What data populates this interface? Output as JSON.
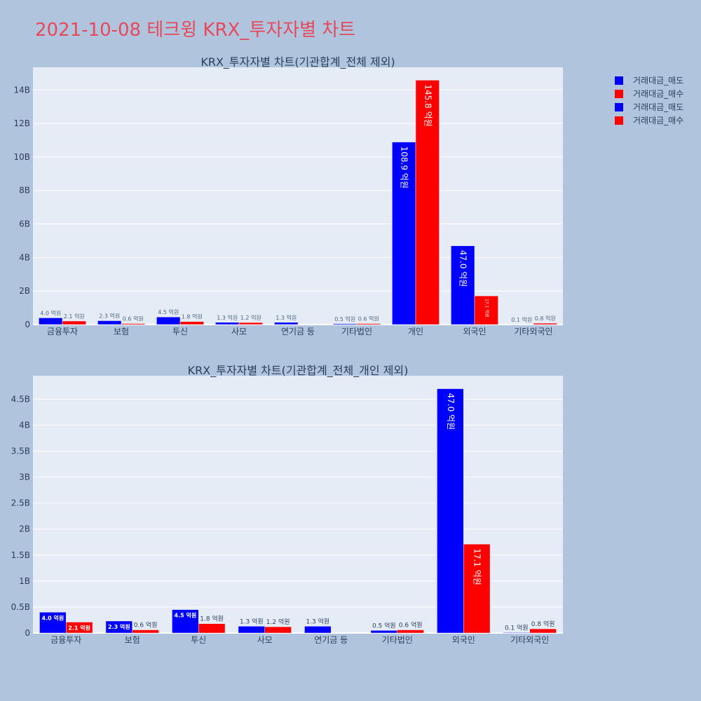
{
  "title": "2021-10-08 테크윙 KRX_투자자별 차트",
  "legend": [
    {
      "label": "거래대금_매도",
      "color": "#0000ff"
    },
    {
      "label": "거래대금_매수",
      "color": "#ff0000"
    },
    {
      "label": "거래대금_매도",
      "color": "#0000ff"
    },
    {
      "label": "거래대금_매수",
      "color": "#ff0000"
    }
  ],
  "chart_data": [
    {
      "type": "bar",
      "title": "KRX_투자자별 차트(기관합계_전체 제외)",
      "categories": [
        "금융투자",
        "보험",
        "투신",
        "사모",
        "연기금 등",
        "기타법인",
        "개인",
        "외국인",
        "기타외국인"
      ],
      "series": [
        {
          "name": "거래대금_매도",
          "color": "#0000ff",
          "values": [
            400000000,
            230000000,
            450000000,
            130000000,
            130000000,
            50000000,
            10890000000,
            4700000000,
            10000000
          ],
          "labels": [
            "4.0 억원",
            "2.3 억원",
            "4.5 억원",
            "1.3 억원",
            "1.3 억원",
            "0.5 억원",
            "108.9 억원",
            "47.0 억원",
            "0.1 억원"
          ]
        },
        {
          "name": "거래대금_매수",
          "color": "#ff0000",
          "values": [
            210000000,
            60000000,
            180000000,
            120000000,
            0,
            60000000,
            14580000000,
            1710000000,
            80000000
          ],
          "labels": [
            "2.1 억원",
            "0.6 억원",
            "1.8 억원",
            "1.2 억원",
            "",
            "0.6 억원",
            "145.8 억원",
            "17.1 억원",
            "0.8 억원"
          ]
        }
      ],
      "yticks": [
        0,
        2000000000,
        4000000000,
        6000000000,
        8000000000,
        10000000000,
        12000000000,
        14000000000
      ],
      "yticklabels": [
        "0",
        "2B",
        "4B",
        "6B",
        "8B",
        "10B",
        "12B",
        "14B"
      ],
      "ylim": [
        0,
        15350000000
      ],
      "grid": true
    },
    {
      "type": "bar",
      "title": "KRX_투자자별 차트(기관합계_전체_개인 제외)",
      "categories": [
        "금융투자",
        "보험",
        "투신",
        "사모",
        "연기금 등",
        "기타법인",
        "외국인",
        "기타외국인"
      ],
      "series": [
        {
          "name": "거래대금_매도",
          "color": "#0000ff",
          "values": [
            400000000,
            230000000,
            450000000,
            130000000,
            130000000,
            50000000,
            4700000000,
            10000000
          ],
          "labels": [
            "4.0 억원",
            "2.3 억원",
            "4.5 억원",
            "1.3 억원",
            "1.3 억원",
            "0.5 억원",
            "47.0 억원",
            "0.1 억원"
          ]
        },
        {
          "name": "거래대금_매수",
          "color": "#ff0000",
          "values": [
            210000000,
            60000000,
            180000000,
            120000000,
            0,
            60000000,
            1710000000,
            80000000
          ],
          "labels": [
            "2.1 억원",
            "0.6 억원",
            "1.8 억원",
            "1.2 억원",
            "",
            "0.6 억원",
            "17.1 억원",
            "0.8 억원"
          ]
        }
      ],
      "yticks": [
        0,
        500000000,
        1000000000,
        1500000000,
        2000000000,
        2500000000,
        3000000000,
        3500000000,
        4000000000,
        4500000000
      ],
      "yticklabels": [
        "0",
        "0.5B",
        "1B",
        "1.5B",
        "2B",
        "2.5B",
        "3B",
        "3.5B",
        "4B",
        "4.5B"
      ],
      "ylim": [
        0,
        4950000000
      ],
      "grid": true
    }
  ]
}
